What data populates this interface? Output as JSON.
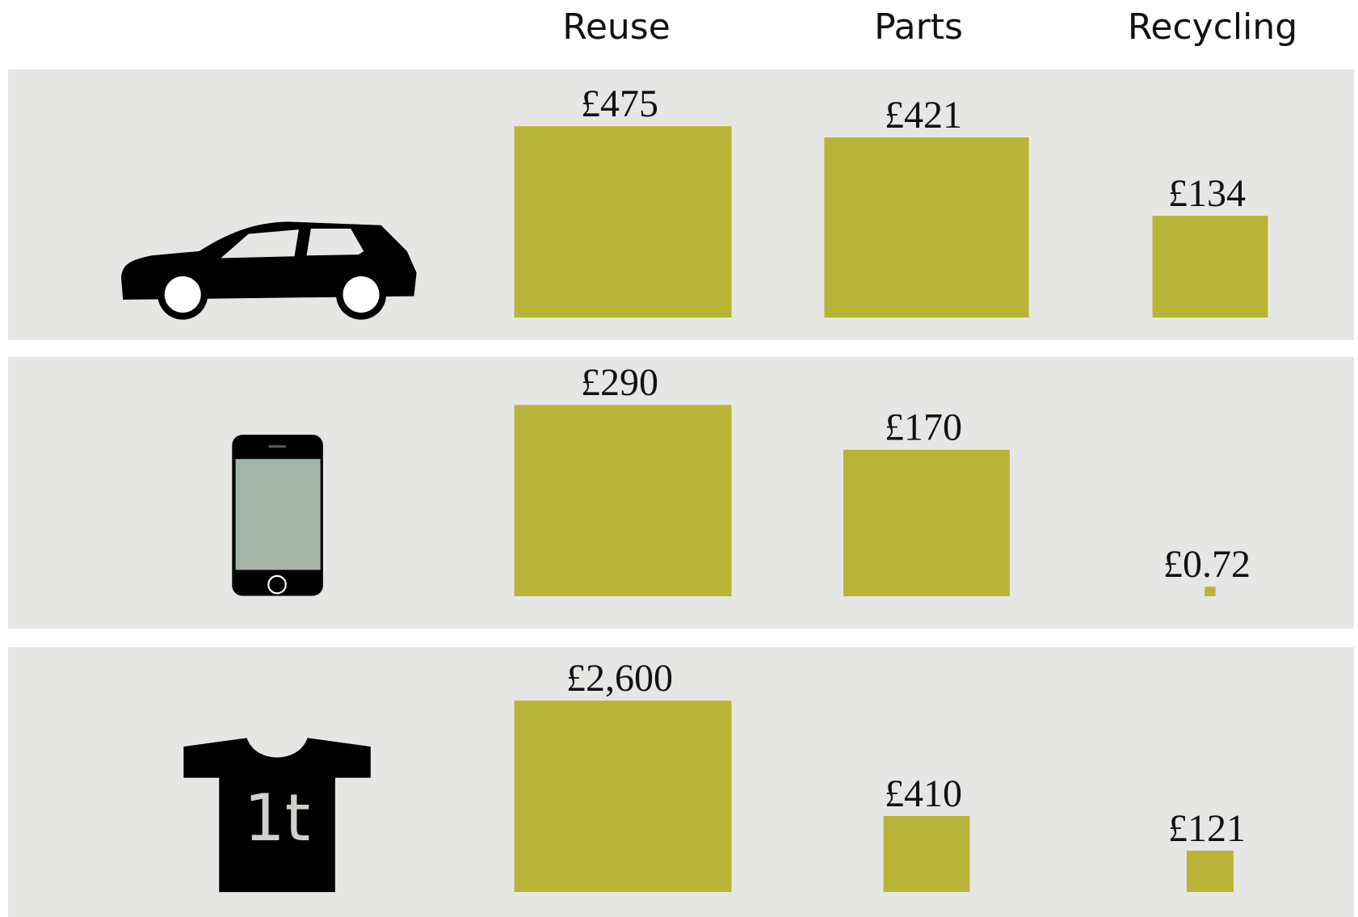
{
  "chart_data": {
    "type": "proportional-area",
    "categories": [
      "Reuse",
      "Parts",
      "Recycling"
    ],
    "color": "#b8b437",
    "series": [
      {
        "values": [
          475,
          421,
          134
        ],
        "value_labels": [
          "£475",
          "£421",
          "£134"
        ]
      },
      {
        "values": [
          290,
          170,
          0.72
        ],
        "value_labels": [
          "£290",
          "£170",
          "£0.72"
        ]
      },
      {
        "values": [
          2600,
          410,
          121
        ],
        "value_labels": [
          "£2,600",
          "£410",
          "£121"
        ],
        "icon_text": "1t"
      }
    ]
  }
}
